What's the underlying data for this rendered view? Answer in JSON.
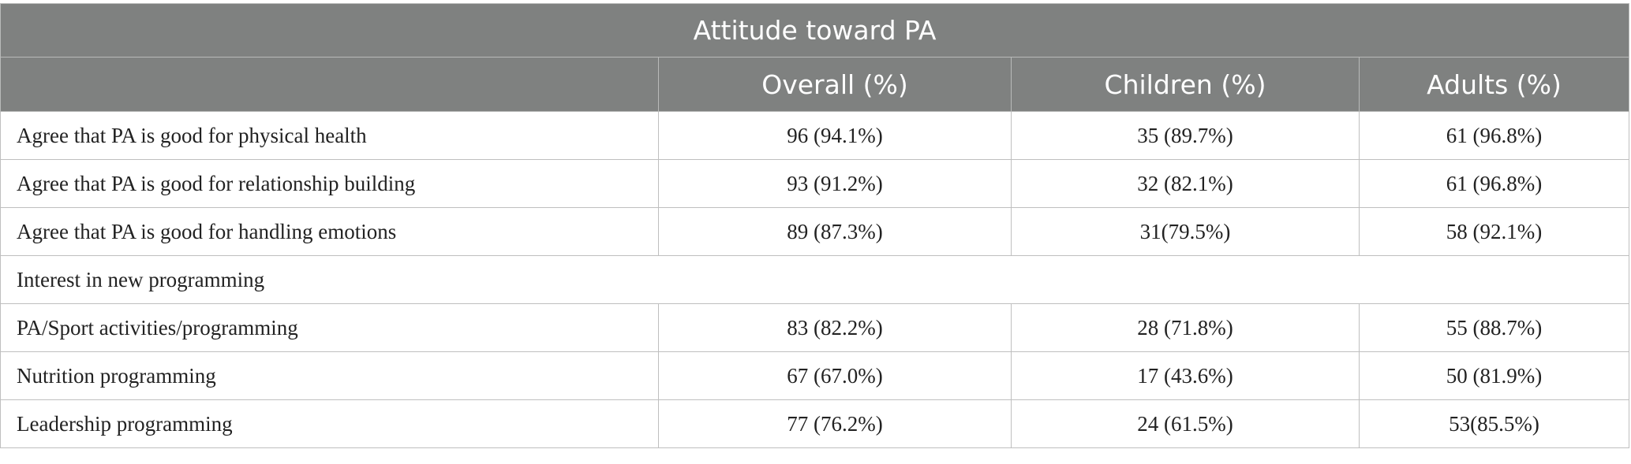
{
  "table": {
    "title": "Attitude toward PA",
    "columns": [
      "",
      "Overall (%)",
      "Children (%)",
      "Adults (%)"
    ],
    "rows": [
      {
        "label": "Agree that PA is good for physical health",
        "overall": "96 (94.1%)",
        "children": "35 (89.7%)",
        "adults": "61 (96.8%)"
      },
      {
        "label": "Agree that PA is good for relationship building",
        "overall": "93 (91.2%)",
        "children": "32 (82.1%)",
        "adults": "61 (96.8%)"
      },
      {
        "label": "Agree that PA is good for handling emotions",
        "overall": "89 (87.3%)",
        "children": "31(79.5%)",
        "adults": "58 (92.1%)"
      },
      {
        "label": "PA/Sport activities/programming",
        "overall": "83 (82.2%)",
        "children": "28 (71.8%)",
        "adults": "55 (88.7%)"
      },
      {
        "label": "Nutrition programming",
        "overall": "67 (67.0%)",
        "children": "17 (43.6%)",
        "adults": "50 (81.9%)"
      },
      {
        "label": "Leadership programming",
        "overall": "77 (76.2%)",
        "children": "24 (61.5%)",
        "adults": "53(85.5%)"
      }
    ],
    "section_label": "Interest in new programming"
  }
}
